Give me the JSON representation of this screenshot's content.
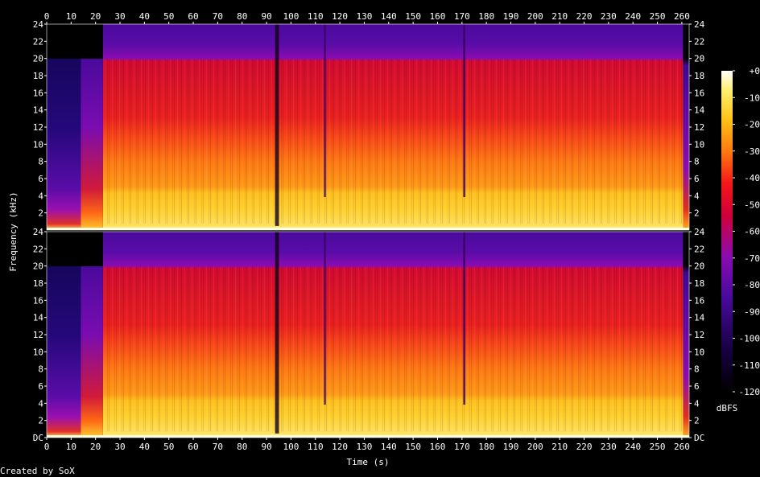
{
  "chart_data": {
    "type": "heatmap",
    "xlabel": "Time (s)",
    "ylabel": "Frequency (kHz)",
    "x_ticks": [
      0,
      10,
      20,
      30,
      40,
      50,
      60,
      70,
      80,
      90,
      100,
      110,
      120,
      130,
      140,
      150,
      160,
      170,
      180,
      190,
      200,
      210,
      220,
      230,
      240,
      250,
      260
    ],
    "xlim": [
      0,
      263
    ],
    "y_ticks": [
      "DC",
      "2",
      "4",
      "6",
      "8",
      "10",
      "12",
      "14",
      "16",
      "18",
      "20",
      "22",
      "24"
    ],
    "ylim_khz": [
      0,
      24
    ],
    "channels": 2,
    "colorbar": {
      "label": "dBFS",
      "ticks": [
        "+0",
        "-10",
        "-20",
        "-30",
        "-40",
        "-50",
        "-60",
        "-70",
        "-80",
        "-90",
        "-100",
        "-110",
        "-120"
      ],
      "range": [
        -120,
        0
      ]
    },
    "credit": "Created by SoX",
    "colors": {
      "palette": [
        "#000000",
        "#1a0040",
        "#4a0aa0",
        "#8a0cb0",
        "#c8003c",
        "#f01818",
        "#ff7a10",
        "#ffc418",
        "#fff070",
        "#ffffff"
      ]
    }
  }
}
